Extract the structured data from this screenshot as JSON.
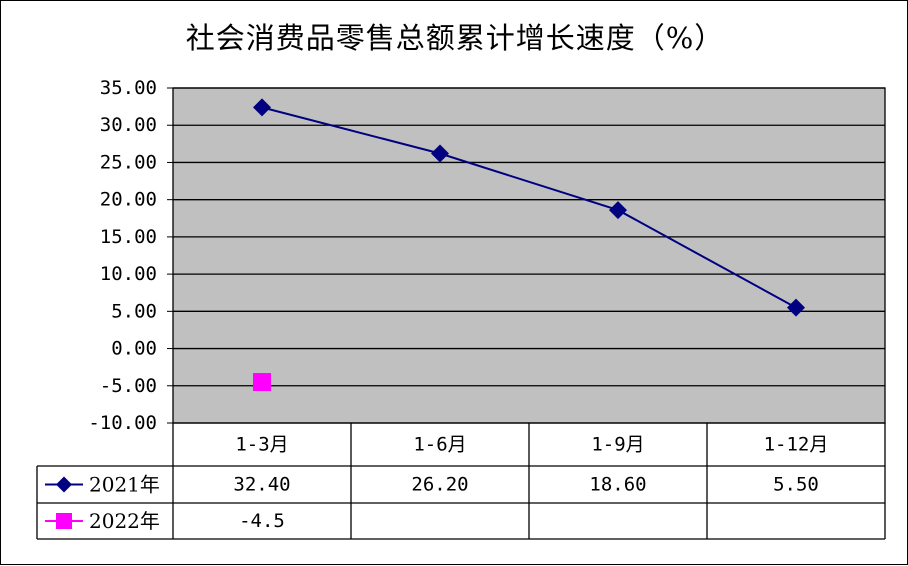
{
  "chart_data": {
    "type": "line",
    "title": "社会消费品零售总额累计增长速度（%）",
    "categories": [
      "1-3月",
      "1-6月",
      "1-9月",
      "1-12月"
    ],
    "ylim": [
      -10,
      35
    ],
    "yticks": [
      "35.00",
      "30.00",
      "25.00",
      "20.00",
      "15.00",
      "10.00",
      "5.00",
      "0.00",
      "-5.00",
      "-10.00"
    ],
    "ytick_values": [
      35,
      30,
      25,
      20,
      15,
      10,
      5,
      0,
      -5,
      -10
    ],
    "grid": true,
    "legend": "data-table",
    "series": [
      {
        "name": "2021年",
        "values": [
          32.4,
          26.2,
          18.6,
          5.5
        ],
        "labels": [
          "32.40",
          "26.20",
          "18.60",
          "5.50"
        ],
        "color": "#000080",
        "marker": "diamond"
      },
      {
        "name": "2022年",
        "values": [
          -4.5,
          null,
          null,
          null
        ],
        "labels": [
          "-4.5",
          "",
          "",
          ""
        ],
        "color": "#FF00FF",
        "marker": "square"
      }
    ]
  },
  "colors": {
    "plot_bg": "#C0C0C0",
    "grid": "#000000",
    "frame": "#000000"
  }
}
